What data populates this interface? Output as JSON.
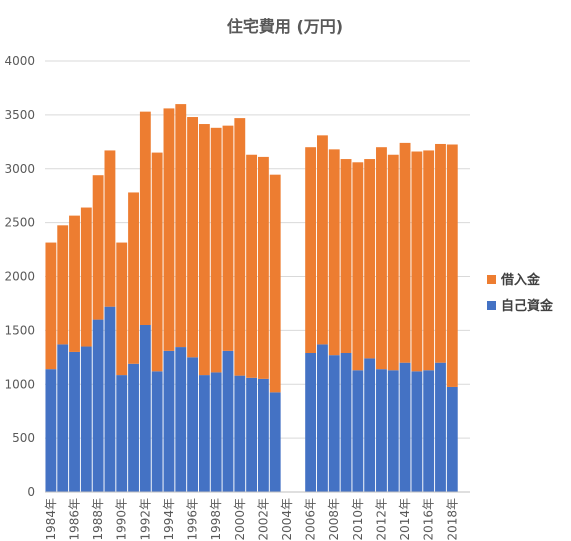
{
  "chart_data": {
    "type": "bar",
    "stacked": true,
    "title": "住宅費用 (万円)",
    "xlabel": "",
    "ylabel": "",
    "ylim": [
      0,
      4000
    ],
    "yticks": [
      "0",
      "500",
      "1000",
      "1500",
      "2000",
      "2500",
      "3000",
      "3500",
      "4000"
    ],
    "grid": true,
    "legend_position": "right",
    "categories": [
      "1984年",
      "1985年",
      "1986年",
      "1987年",
      "1988年",
      "1989年",
      "1990年",
      "1991年",
      "1992年",
      "1993年",
      "1994年",
      "1995年",
      "1996年",
      "1997年",
      "1998年",
      "1999年",
      "2000年",
      "2001年",
      "2002年",
      "2003年",
      "2004年",
      "2005年",
      "2006年",
      "2007年",
      "2008年",
      "2009年",
      "2010年",
      "2011年",
      "2012年",
      "2013年",
      "2014年",
      "2015年",
      "2016年",
      "2017年",
      "2018年",
      "2019年"
    ],
    "visible_tick_labels": [
      "1984年",
      "1986年",
      "1988年",
      "1990年",
      "1992年",
      "1994年",
      "1996年",
      "1998年",
      "2000年",
      "2002年",
      "2004年",
      "2006年",
      "2008年",
      "2010年",
      "2012年",
      "2014年",
      "2016年",
      "2018年"
    ],
    "series": [
      {
        "name": "自己資金",
        "color": "#4472c4",
        "values": [
          1140,
          1370,
          1300,
          1350,
          1600,
          1720,
          1085,
          1190,
          1550,
          1120,
          1310,
          1345,
          1250,
          1085,
          1110,
          1310,
          1080,
          1060,
          1050,
          925,
          null,
          null,
          1290,
          1370,
          1270,
          1290,
          1130,
          1240,
          1140,
          1130,
          1200,
          1120,
          1130,
          1200,
          975,
          null
        ]
      },
      {
        "name": "借入金",
        "color": "#ed7d31",
        "values": [
          1175,
          1105,
          1265,
          1290,
          1340,
          1450,
          1230,
          1590,
          1980,
          2030,
          2250,
          2255,
          2230,
          2330,
          2270,
          2090,
          2390,
          2070,
          2060,
          2020,
          null,
          null,
          1910,
          1940,
          1910,
          1800,
          1930,
          1850,
          2060,
          2000,
          2040,
          2040,
          2040,
          2030,
          2250,
          null
        ]
      }
    ]
  }
}
